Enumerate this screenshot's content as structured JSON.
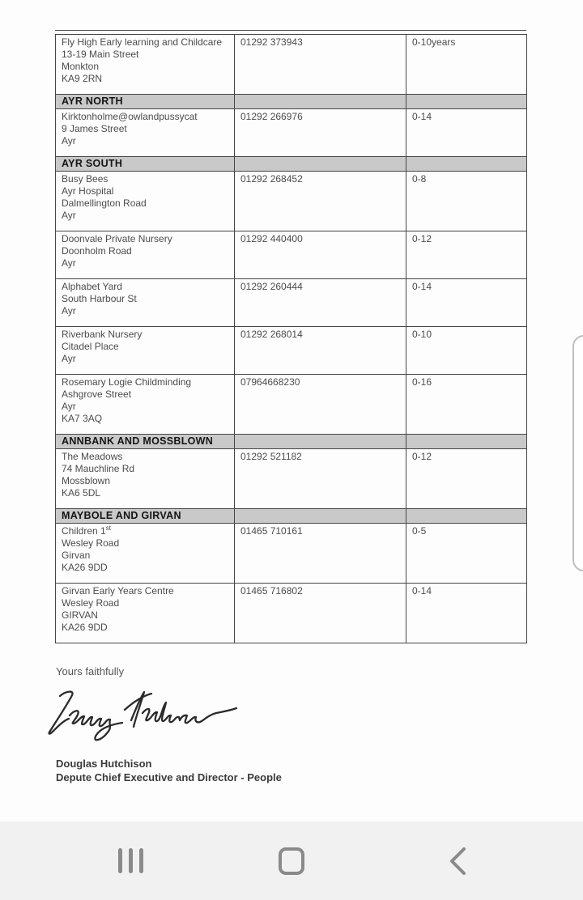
{
  "document": {
    "closing": "Yours faithfully",
    "signature_text": "Douglas Hutchison",
    "signatory": {
      "name": "Douglas Hutchison",
      "title": "Depute Chief Executive and Director - People"
    },
    "table": {
      "columns": [
        "name_address",
        "phone",
        "ages"
      ],
      "rows": [
        {
          "type": "entry",
          "name_lines": [
            "Fly High Early learning and Childcare",
            "13-19 Main Street",
            "Monkton",
            "KA9 2RN"
          ],
          "phone": "01292 373943",
          "ages": "0-10years"
        },
        {
          "type": "section",
          "label": "AYR NORTH"
        },
        {
          "type": "entry",
          "name_lines": [
            "Kirktonholme@owlandpussycat",
            "9 James Street",
            "Ayr"
          ],
          "phone": "01292 266976",
          "ages": "0-14"
        },
        {
          "type": "section",
          "label": "AYR SOUTH"
        },
        {
          "type": "entry",
          "name_lines": [
            "Busy Bees",
            "Ayr Hospital",
            "Dalmellington Road",
            "Ayr"
          ],
          "phone": "01292 268452",
          "ages": "0-8"
        },
        {
          "type": "entry",
          "name_lines": [
            "Doonvale Private Nursery",
            "Doonholm Road",
            "Ayr"
          ],
          "phone": "01292 440400",
          "ages": "0-12"
        },
        {
          "type": "entry",
          "name_lines": [
            "Alphabet Yard",
            "South Harbour St",
            "Ayr"
          ],
          "phone": "01292 260444",
          "ages": "0-14"
        },
        {
          "type": "entry",
          "name_lines": [
            "Riverbank Nursery",
            "Citadel Place",
            "Ayr"
          ],
          "phone": "01292 268014",
          "ages": "0-10"
        },
        {
          "type": "entry",
          "name_lines": [
            "Rosemary Logie Childminding",
            "Ashgrove Street",
            "Ayr",
            "KA7 3AQ"
          ],
          "phone": "07964668230",
          "ages": "0-16"
        },
        {
          "type": "section",
          "label": "ANNBANK AND MOSSBLOWN"
        },
        {
          "type": "entry",
          "name_lines": [
            "The Meadows",
            "74 Mauchline Rd",
            "Mossblown",
            "KA6 5DL"
          ],
          "phone": "01292 521182",
          "ages": "0-12"
        },
        {
          "type": "section",
          "label": "MAYBOLE AND GIRVAN"
        },
        {
          "type": "entry",
          "name_lines": [
            {
              "text": "Children 1",
              "sup": "st"
            },
            "Wesley Road",
            "Girvan",
            "KA26 9DD"
          ],
          "phone": "01465 710161",
          "ages": "0-5"
        },
        {
          "type": "entry",
          "name_lines": [
            "Girvan Early Years Centre",
            "Wesley Road",
            "GIRVAN",
            "KA26 9DD"
          ],
          "phone": "01465 716802",
          "ages": "0-14"
        }
      ]
    }
  },
  "nav_bar": {
    "buttons": [
      {
        "id": "recents",
        "icon": "recents-icon"
      },
      {
        "id": "home",
        "icon": "home-icon"
      },
      {
        "id": "back",
        "icon": "back-icon"
      }
    ]
  },
  "colors": {
    "section_header_bg": "#c9c9c9",
    "table_border": "#454545",
    "body_text": "#4c4c4c",
    "heading_text": "#141414",
    "nav_bar_bg": "#f1f1f1",
    "nav_icon": "#8a8a8a",
    "signature_ink": "#2b2b2b"
  }
}
